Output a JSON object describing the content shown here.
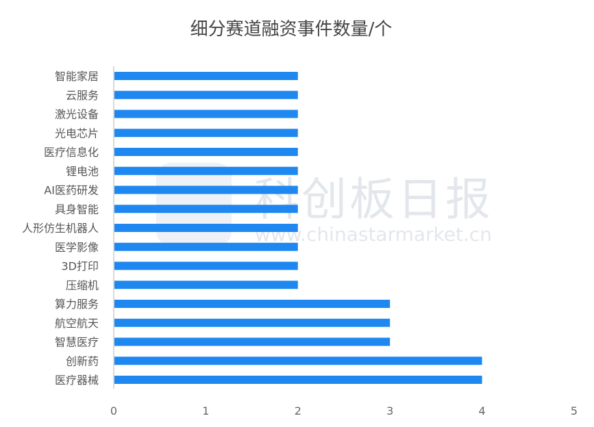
{
  "chart_data": {
    "type": "bar",
    "orientation": "horizontal",
    "title": "细分赛道融资事件数量/个",
    "categories": [
      "智能家居",
      "云服务",
      "激光设备",
      "光电芯片",
      "医疗信息化",
      "锂电池",
      "AI医药研发",
      "具身智能",
      "人形仿生机器人",
      "医学影像",
      "3D打印",
      "压缩机",
      "算力服务",
      "航空航天",
      "智慧医疗",
      "创新药",
      "医疗器械"
    ],
    "values": [
      2,
      2,
      2,
      2,
      2,
      2,
      2,
      2,
      2,
      2,
      2,
      2,
      3,
      3,
      3,
      4,
      4
    ],
    "xlim": [
      0,
      5
    ],
    "xticks": [
      "0",
      "1",
      "2",
      "3",
      "4",
      "5"
    ],
    "grid": false,
    "bar_color": "#1e88f0"
  },
  "watermark": {
    "logo_text": "科创板日报",
    "url": "www.chinastarmarket.cn"
  }
}
